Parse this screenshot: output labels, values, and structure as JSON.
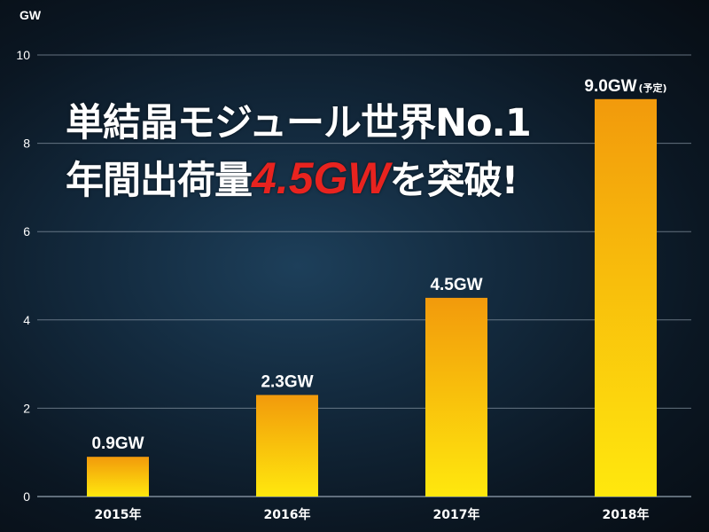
{
  "headline": {
    "line1": "単結晶モジュール世界No.1",
    "line2_prefix": "年間出荷量",
    "line2_highlight": "4.5GW",
    "line2_suffix": "を突破!"
  },
  "chart_data": {
    "type": "bar",
    "title": "",
    "xlabel": "",
    "ylabel": "GW",
    "categories": [
      "2015年",
      "2016年",
      "2017年",
      "2018年"
    ],
    "values": [
      0.9,
      2.3,
      4.5,
      9.0
    ],
    "data_labels": [
      "0.9GW",
      "2.3GW",
      "4.5GW",
      "9.0GW"
    ],
    "data_label_notes": [
      "",
      "",
      "",
      "(予定)"
    ],
    "ylim": [
      0,
      10
    ],
    "yticks": [
      0,
      2,
      4,
      6,
      8,
      10
    ],
    "ytick_labels": [
      "0",
      "2",
      "4",
      "6",
      "8",
      "10"
    ],
    "grid": true,
    "legend": "none",
    "colors": {
      "bar_top": "#f29a0c",
      "bar_bottom": "#ffe80d",
      "gridline": "#8a98a6",
      "highlight_text": "#e8231f",
      "text": "#ffffff"
    }
  }
}
